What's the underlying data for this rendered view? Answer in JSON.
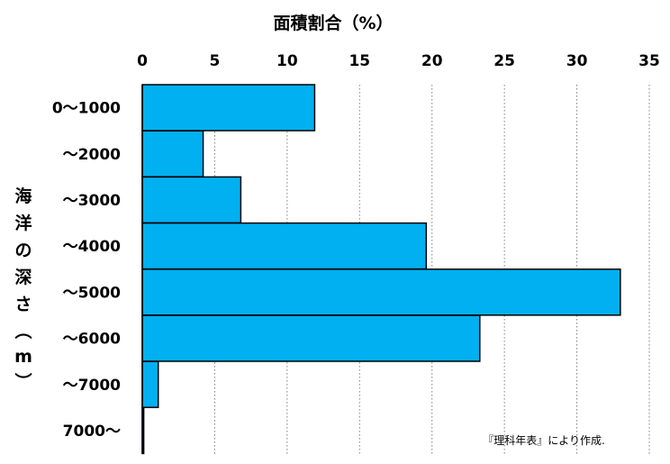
{
  "chart_data": {
    "type": "bar",
    "orientation": "horizontal",
    "title": "面積割合（%）",
    "ylabel": "海洋の深さ（m）",
    "categories": [
      "0～1000",
      "～2000",
      "～3000",
      "～4000",
      "～5000",
      "～6000",
      "～7000",
      "7000～"
    ],
    "values": [
      11.9,
      4.2,
      6.8,
      19.6,
      33.0,
      23.3,
      1.1,
      0.1
    ],
    "xlim": [
      0,
      35
    ],
    "xticks": [
      0,
      5,
      10,
      15,
      20,
      25,
      30,
      35
    ],
    "x_axis_position": "top",
    "grid": true,
    "source": "『理科年表』により作成.",
    "colors": {
      "bar_fill": "#00b0f0",
      "bar_stroke": "#000000",
      "grid": "#808080"
    }
  }
}
